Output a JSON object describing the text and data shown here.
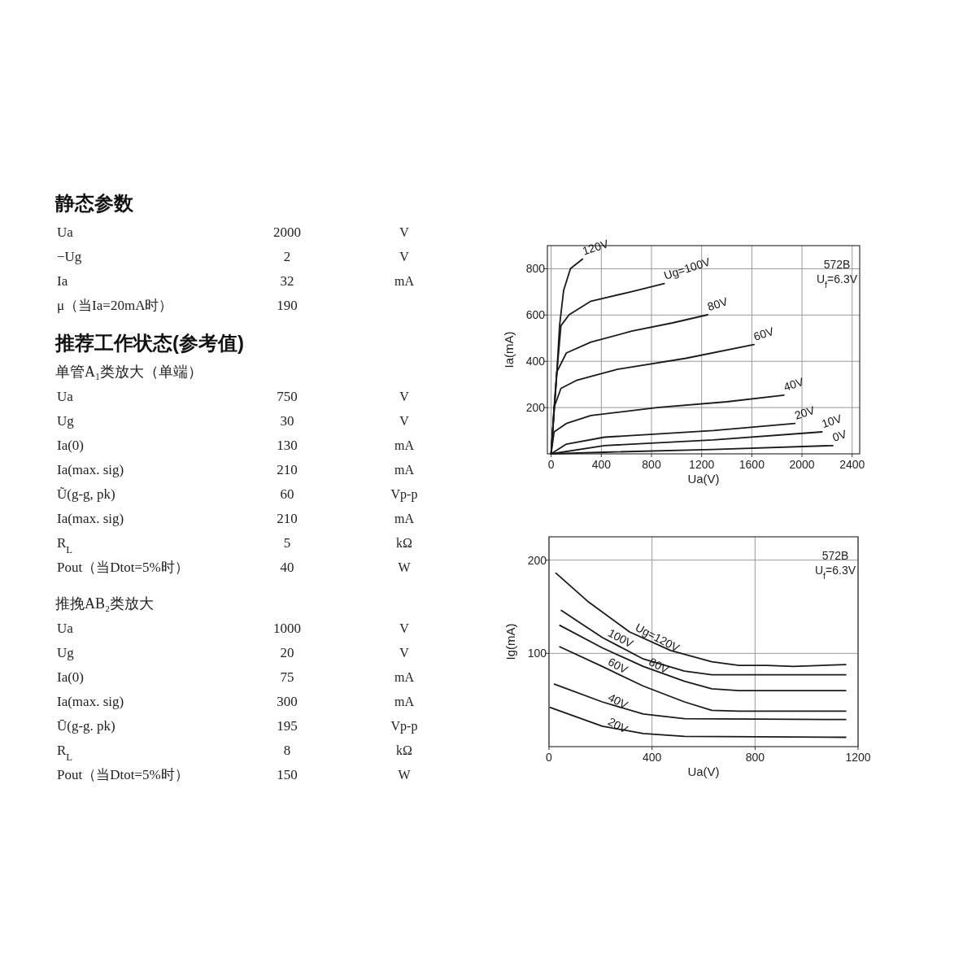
{
  "chart_data": [
    {
      "type": "other",
      "title": "静态参数",
      "categories": [
        "Ua",
        "−Ug",
        "Ia",
        "μ（当Ia=20mA时）"
      ],
      "values": [
        2000,
        2,
        32,
        190
      ],
      "data_labels": true,
      "annotations": [
        "V",
        "V",
        "mA",
        null
      ]
    },
    {
      "type": "other",
      "title": "推荐工作状态(参考值)",
      "subtitle": "单管A₁类放大（单端）",
      "categories": [
        "Ua",
        "Ug",
        "Ia(0)",
        "Ia(max. sig)",
        "Ũ(g-g, pk)",
        "Ia(max. sig)",
        "R$_{L}$",
        "Pout（当Dtot=5%时）"
      ],
      "values": [
        750,
        30,
        130,
        210,
        60,
        210,
        5,
        40
      ],
      "data_labels": true,
      "annotations": [
        "V",
        "V",
        "mA",
        "mA",
        "Vp-p",
        "mA",
        "kΩ",
        "W"
      ]
    },
    {
      "type": "other",
      "subtitle": "推挽AB₂类放大",
      "categories": [
        "Ua",
        "Ug",
        "Ia(0)",
        "Ia(max. sig)",
        "Ū(g-g. pk)",
        "R$_{L}$",
        "Pout（当Dtot=5%时）"
      ],
      "values": [
        1000,
        20,
        75,
        300,
        195,
        8,
        150
      ],
      "data_labels": true,
      "annotations": [
        "V",
        "V",
        "mA",
        "mA",
        "Vp-p",
        "kΩ",
        "W"
      ]
    },
    {
      "type": "line",
      "xlabel": "Ua(V)",
      "ylabel": "Ia(mA)",
      "xlim": [
        -30,
        2460
      ],
      "ylim": [
        0,
        900
      ],
      "xticks": [
        0,
        400,
        800,
        1200,
        1600,
        2000,
        2400
      ],
      "yticks": [
        200,
        400,
        600,
        800
      ],
      "grid": true,
      "marker": "none",
      "line_style": "solid",
      "annotations": [
        "572B",
        "U$_{f}$=6.3V"
      ],
      "series": [
        {
          "name": "120V",
          "color": "#1a1a1a",
          "x": [
            0,
            46,
            67,
            100,
            154,
            251
          ],
          "values": [
            0,
            354,
            554,
            707,
            801,
            842
          ]
        },
        {
          "name": "Ug=100V",
          "color": "#1a1a1a",
          "x": [
            0,
            46,
            78,
            143,
            317,
            642,
            902
          ],
          "values": [
            0,
            354,
            554,
            601,
            660,
            701,
            736
          ]
        },
        {
          "name": "80V",
          "color": "#1a1a1a",
          "x": [
            0,
            24,
            45,
            121,
            317,
            642,
            967,
            1249
          ],
          "values": [
            0,
            201,
            354,
            436,
            483,
            530,
            566,
            601
          ]
        },
        {
          "name": "60V",
          "color": "#1a1a1a",
          "x": [
            0,
            24,
            78,
            208,
            533,
            1075,
            1617
          ],
          "values": [
            0,
            201,
            283,
            319,
            366,
            413,
            472
          ]
        },
        {
          "name": "40V",
          "color": "#1a1a1a",
          "x": [
            0,
            24,
            121,
            317,
            859,
            1400,
            1856
          ],
          "values": [
            0,
            95,
            131,
            166,
            201,
            225,
            254
          ]
        },
        {
          "name": "20V",
          "color": "#1a1a1a",
          "x": [
            0,
            121,
            425,
            1292,
            1943
          ],
          "values": [
            0,
            42,
            72,
            101,
            131
          ]
        },
        {
          "name": "10V",
          "color": "#1a1a1a",
          "x": [
            0,
            425,
            1292,
            2159
          ],
          "values": [
            0,
            36,
            60,
            95
          ]
        },
        {
          "name": "0V",
          "color": "#1a1a1a",
          "x": [
            0,
            425,
            1292,
            2246
          ],
          "values": [
            0,
            7,
            19,
            36
          ]
        }
      ]
    },
    {
      "type": "line",
      "xlabel": "Ua(V)",
      "ylabel": "Ig(mA)",
      "xlim": [
        0,
        1200
      ],
      "ylim": [
        0,
        225
      ],
      "xticks": [
        0,
        400,
        800,
        1200
      ],
      "yticks": [
        100,
        200
      ],
      "grid": true,
      "marker": "none",
      "line_style": "solid",
      "annotations": [
        "572B",
        "U$_{f}$=6.3V"
      ],
      "series": [
        {
          "name": "Ug=120V",
          "color": "#1a1a1a",
          "x": [
            27,
            154,
            313,
            473,
            632,
            738,
            844,
            950,
            1152
          ],
          "values": [
            186,
            155,
            123,
            103,
            91,
            87,
            87,
            86,
            88
          ]
        },
        {
          "name": "100V",
          "color": "#1a1a1a",
          "x": [
            48,
            207,
            366,
            526,
            632,
            1152
          ],
          "values": [
            146,
            117,
            94,
            81,
            77,
            77
          ]
        },
        {
          "name": "80V",
          "color": "#1a1a1a",
          "x": [
            42,
            207,
            366,
            526,
            632,
            738,
            1152
          ],
          "values": [
            130,
            106,
            86,
            70,
            62,
            60,
            60
          ]
        },
        {
          "name": "60V",
          "color": "#1a1a1a",
          "x": [
            42,
            207,
            366,
            526,
            632,
            738,
            1152
          ],
          "values": [
            107,
            86,
            65,
            48,
            39,
            38,
            38
          ]
        },
        {
          "name": "40V",
          "color": "#1a1a1a",
          "x": [
            21,
            207,
            366,
            526,
            1152
          ],
          "values": [
            67,
            48,
            35,
            30,
            29
          ]
        },
        {
          "name": "20V",
          "color": "#1a1a1a",
          "x": [
            5,
            207,
            366,
            526,
            1152
          ],
          "values": [
            42,
            22,
            14,
            11,
            10
          ]
        }
      ]
    }
  ]
}
